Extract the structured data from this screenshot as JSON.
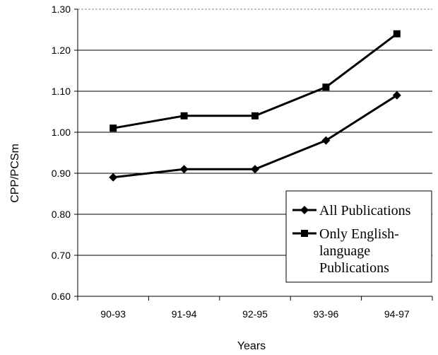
{
  "chart_data": {
    "type": "line",
    "categories": [
      "90-93",
      "91-94",
      "92-95",
      "93-96",
      "94-97"
    ],
    "series": [
      {
        "name": "All Publications",
        "values": [
          0.89,
          0.91,
          0.91,
          0.98,
          1.09
        ],
        "marker": "diamond",
        "color": "#000000"
      },
      {
        "name": "Only English-language Publications",
        "name_lines": [
          "Only English-",
          "language",
          "Publications"
        ],
        "values": [
          1.01,
          1.04,
          1.04,
          1.11,
          1.24
        ],
        "marker": "square",
        "color": "#000000"
      }
    ],
    "title": "",
    "xlabel": "Years",
    "ylabel": "CPP/PCSm",
    "ylim": [
      0.6,
      1.3
    ],
    "yticks": [
      "0.60",
      "0.70",
      "0.80",
      "0.90",
      "1.00",
      "1.10",
      "1.20",
      "1.30"
    ],
    "grid": "horizontal",
    "legend_position": "bottom-right"
  }
}
